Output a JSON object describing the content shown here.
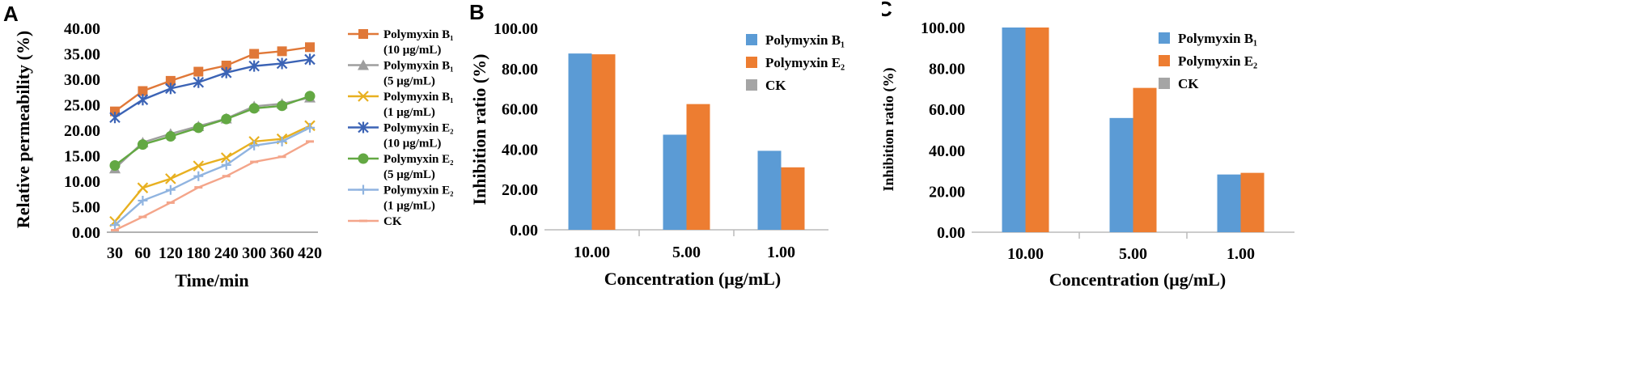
{
  "chart_data": [
    {
      "panel": "A",
      "type": "line",
      "xlabel": "Time/min",
      "ylabel": "Relative permeability (%)",
      "x": [
        30,
        60,
        120,
        180,
        240,
        300,
        360,
        420
      ],
      "x_tick_labels": [
        "30",
        "60",
        "120",
        "180",
        "240",
        "300",
        "360",
        "420"
      ],
      "ylim": [
        0,
        40
      ],
      "y_tick_labels": [
        "0.00",
        "5.00",
        "10.00",
        "15.00",
        "20.00",
        "25.00",
        "30.00",
        "35.00",
        "40.00"
      ],
      "series": [
        {
          "name": "Polymyxin B₁",
          "conc": "(10 μg/mL)",
          "color": "#E07838",
          "marker": "square",
          "values": [
            23.7,
            27.7,
            29.7,
            31.5,
            32.7,
            35.0,
            35.5,
            36.3
          ]
        },
        {
          "name": "Polymyxin B₁",
          "conc": "(5 μg/mL)",
          "color": "#9E9E9E",
          "marker": "triangle",
          "values": [
            12.5,
            17.6,
            19.3,
            20.8,
            22.3,
            24.7,
            25.2,
            26.4
          ]
        },
        {
          "name": "Polymyxin B₁",
          "conc": "(1 μg/mL)",
          "color": "#E8B020",
          "marker": "x",
          "values": [
            2.1,
            8.7,
            10.5,
            13.0,
            14.6,
            17.8,
            18.3,
            20.9
          ]
        },
        {
          "name": "Polymyxin E₂",
          "conc": "(10 μg/mL)",
          "color": "#3B63B5",
          "marker": "star",
          "values": [
            22.5,
            26.0,
            28.2,
            29.4,
            31.3,
            32.6,
            33.1,
            33.9
          ]
        },
        {
          "name": "Polymyxin E₂",
          "conc": "(5 μg/mL)",
          "color": "#63A843",
          "marker": "circle",
          "values": [
            13.1,
            17.2,
            18.8,
            20.5,
            22.2,
            24.3,
            24.8,
            26.7
          ]
        },
        {
          "name": "Polymyxin E₂",
          "conc": "(1 μg/mL)",
          "color": "#90B4E0",
          "marker": "plus",
          "values": [
            1.4,
            6.2,
            8.3,
            11.0,
            13.2,
            17.0,
            17.8,
            20.5
          ]
        },
        {
          "name": "CK",
          "conc": "",
          "color": "#F4A58A",
          "marker": "dash",
          "values": [
            0.4,
            3.0,
            5.8,
            8.8,
            11.0,
            13.8,
            14.8,
            17.8
          ]
        }
      ]
    },
    {
      "panel": "B",
      "type": "bar",
      "xlabel": "Concentration (μg/mL)",
      "ylabel": "Inhibition ratio (%)",
      "categories": [
        "10.00",
        "5.00",
        "1.00"
      ],
      "ylim": [
        0,
        100
      ],
      "y_tick_labels": [
        "0.00",
        "20.00",
        "40.00",
        "60.00",
        "80.00",
        "100.00"
      ],
      "series": [
        {
          "name": "Polymyxin B₁",
          "color": "#5B9BD5",
          "values": [
            87.5,
            47.2,
            39.2
          ]
        },
        {
          "name": "Polymyxin E₂",
          "color": "#ED7D31",
          "values": [
            87.1,
            62.4,
            31.0
          ]
        },
        {
          "name": "CK",
          "color": "#A5A5A5",
          "values": [
            0,
            0,
            0
          ]
        }
      ]
    },
    {
      "panel": "C",
      "type": "bar",
      "xlabel": "Concentration (μg/mL)",
      "ylabel": "Inhibition ratio (%)",
      "categories": [
        "10.00",
        "5.00",
        "1.00"
      ],
      "ylim": [
        0,
        100
      ],
      "y_tick_labels": [
        "0.00",
        "20.00",
        "40.00",
        "60.00",
        "80.00",
        "100.00"
      ],
      "series": [
        {
          "name": "Polymyxin B₁",
          "color": "#5B9BD5",
          "values": [
            100.0,
            55.8,
            28.2
          ]
        },
        {
          "name": "Polymyxin E₂",
          "color": "#ED7D31",
          "values": [
            100.0,
            70.5,
            29.0
          ]
        },
        {
          "name": "CK",
          "color": "#A5A5A5",
          "values": [
            0,
            0,
            0
          ]
        }
      ]
    }
  ]
}
